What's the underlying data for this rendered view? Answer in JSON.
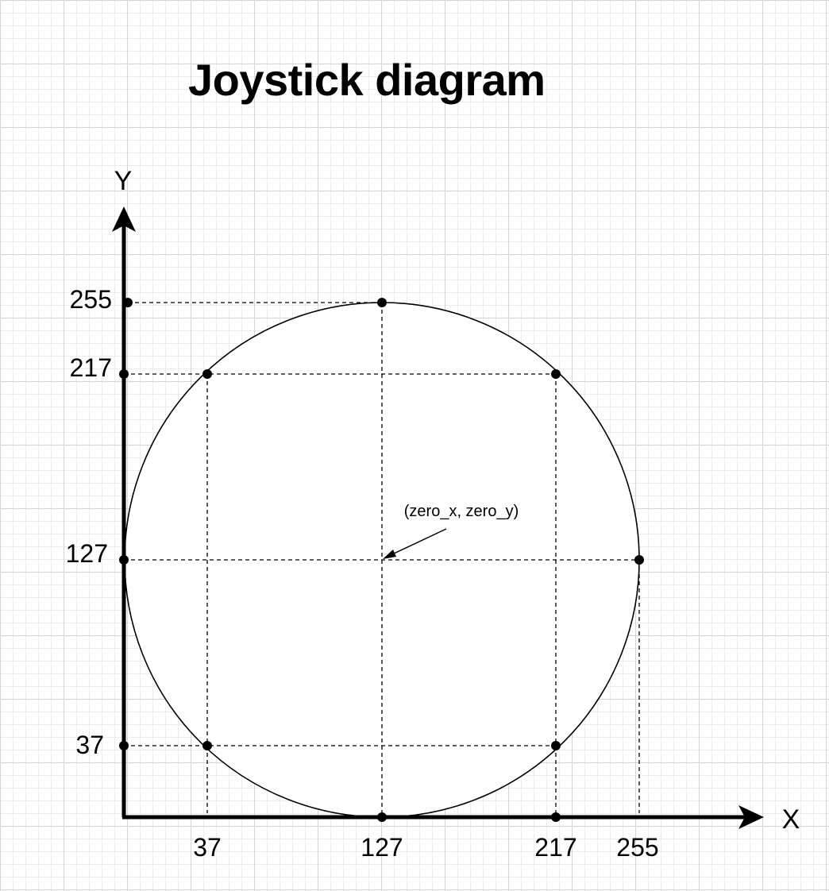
{
  "title": "Joystick diagram",
  "axes": {
    "x_label": "X",
    "y_label": "Y"
  },
  "annotation": "(zero_x, zero_y)",
  "x_ticks": [
    "37",
    "127",
    "217",
    "255"
  ],
  "y_ticks": [
    "255",
    "217",
    "127",
    "37"
  ],
  "points": [
    {
      "x": 127,
      "y": 255
    },
    {
      "x": 37,
      "y": 217
    },
    {
      "x": 217,
      "y": 217
    },
    {
      "x": 255,
      "y": 127
    },
    {
      "x": 37,
      "y": 37
    },
    {
      "x": 217,
      "y": 37
    },
    {
      "x": 127,
      "y": 0
    },
    {
      "x": 217,
      "y": 0
    },
    {
      "x": 0,
      "y": 255
    },
    {
      "x": 0,
      "y": 217
    },
    {
      "x": 0,
      "y": 127
    },
    {
      "x": 0,
      "y": 37
    }
  ],
  "colors": {
    "stroke": "#000000",
    "grid": "#d4d4d4"
  }
}
